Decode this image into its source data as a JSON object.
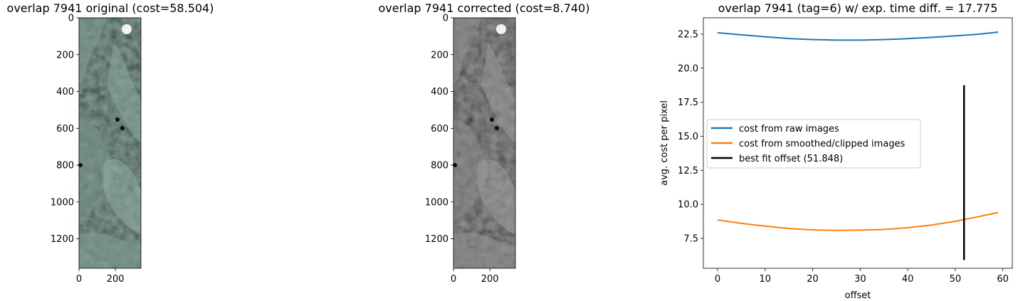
{
  "chart_data": [
    {
      "type": "image",
      "title": "overlap 7941 original (cost=58.504)",
      "x_ticks": [
        0,
        200
      ],
      "y_ticks": [
        0,
        200,
        400,
        600,
        800,
        1000,
        1200
      ],
      "xlim": [
        0,
        340
      ],
      "ylim": [
        1360,
        0
      ],
      "tint": "#d8e8e2"
    },
    {
      "type": "image",
      "title": "overlap 7941 corrected (cost=8.740)",
      "x_ticks": [
        0,
        200
      ],
      "y_ticks": [
        0,
        200,
        400,
        600,
        800,
        1000,
        1200
      ],
      "xlim": [
        0,
        340
      ],
      "ylim": [
        1360,
        0
      ],
      "tint": "#e4e4e4"
    },
    {
      "type": "line",
      "title": "overlap 7941 (tag=6) w/ exp. time diff. = 17.775",
      "xlabel": "offset",
      "ylabel": "avg. cost per pixel",
      "xlim": [
        -3,
        62
      ],
      "ylim": [
        5.3,
        23.7
      ],
      "x_ticks": [
        0,
        10,
        20,
        30,
        40,
        50,
        60
      ],
      "y_ticks": [
        "7.5",
        "10.0",
        "12.5",
        "15.0",
        "17.5",
        "20.0",
        "22.5"
      ],
      "x": [
        0,
        5,
        10,
        15,
        20,
        25,
        30,
        35,
        40,
        45,
        50,
        55,
        59
      ],
      "series": [
        {
          "name": "cost from raw images",
          "color": "#1f77b4",
          "values": [
            22.6,
            22.45,
            22.3,
            22.18,
            22.1,
            22.06,
            22.06,
            22.1,
            22.17,
            22.26,
            22.37,
            22.5,
            22.65
          ]
        },
        {
          "name": "cost from smoothed/clipped images",
          "color": "#ff7f0e",
          "values": [
            8.85,
            8.6,
            8.4,
            8.22,
            8.12,
            8.08,
            8.1,
            8.15,
            8.28,
            8.48,
            8.75,
            9.1,
            9.4
          ]
        }
      ],
      "vline": {
        "name": "best fit offset (51.848)",
        "color": "#000000",
        "x": 51.848,
        "y": [
          5.9,
          18.75
        ]
      }
    }
  ]
}
